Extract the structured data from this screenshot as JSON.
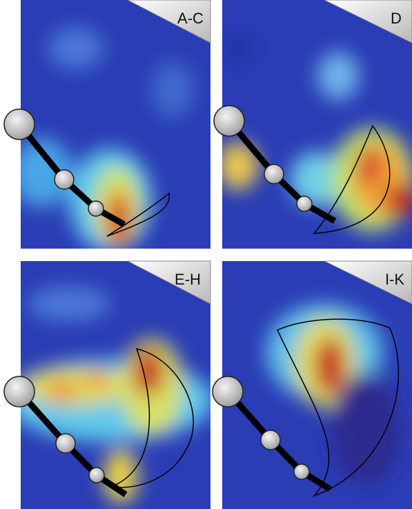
{
  "panels": [
    {
      "label": "A-C"
    },
    {
      "label": "D"
    },
    {
      "label": "E-H"
    },
    {
      "label": "I-K"
    }
  ]
}
